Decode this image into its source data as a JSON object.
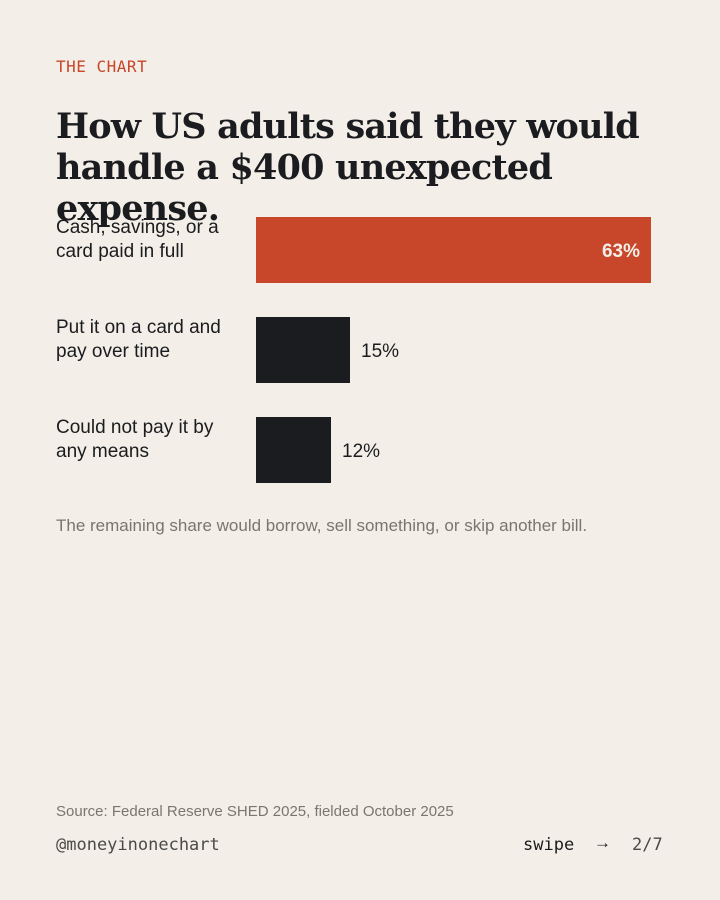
{
  "header": {
    "kicker": "THE CHART",
    "title": "How US adults said they would handle a $400 unexpected expense."
  },
  "chart_data": {
    "type": "bar",
    "orientation": "horizontal",
    "categories": [
      "Cash, savings, or a card paid in full",
      "Put it on a card and pay over time",
      "Could not pay it by any means"
    ],
    "values": [
      63,
      15,
      12
    ],
    "value_labels": [
      "63%",
      "15%",
      "12%"
    ],
    "unit": "%",
    "highlight_index": 0,
    "xlim": [
      0,
      63
    ],
    "grid": false,
    "title": "How US adults said they would handle a $400 unexpected expense."
  },
  "colors": {
    "background": "#f3eee7",
    "highlight": "#c8472a",
    "bar": "#1b1c1f",
    "text": "#1b1c1f",
    "muted": "#7a766f"
  },
  "note": "The remaining share would borrow, sell something, or skip another bill.",
  "footer": {
    "source": "Source: Federal Reserve SHED 2025, fielded October 2025",
    "handle": "@moneyinonechart",
    "swipe_label": "swipe",
    "arrow_icon": "→",
    "page": "2/7"
  }
}
